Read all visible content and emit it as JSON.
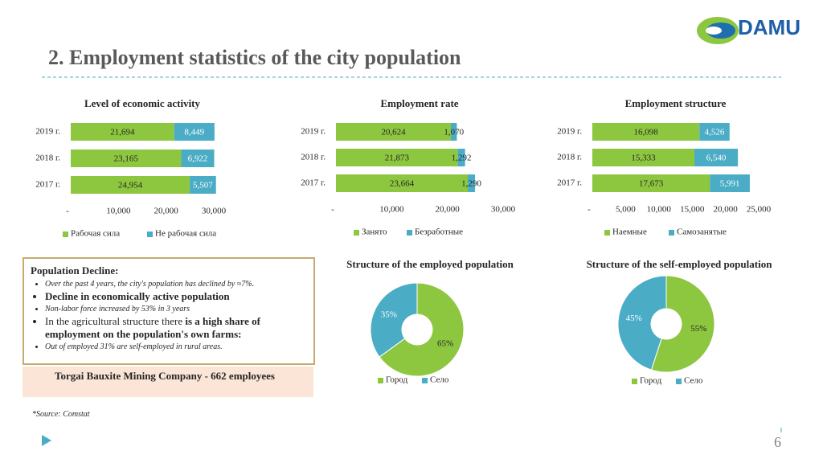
{
  "logo": "DAMU",
  "title": "2. Employment statistics of the city population",
  "chart_data": [
    {
      "type": "hbar",
      "title": "Level of economic activity",
      "categories": [
        "2019 г.",
        "2018 г.",
        "2017 г."
      ],
      "series": [
        {
          "name": "Рабочая сила",
          "color": "#8dc63f",
          "values": [
            21694,
            23165,
            24954
          ],
          "value_labels": [
            "21,694",
            "23,165",
            "24,954"
          ]
        },
        {
          "name": "Не рабочая сила",
          "color": "#4bacc6",
          "values": [
            8449,
            6922,
            5507
          ],
          "value_labels": [
            "8,449",
            "6,922",
            "5,507"
          ]
        }
      ],
      "xlim": [
        0,
        30000
      ],
      "xticks": [
        {
          "value": 0,
          "label": "-"
        },
        {
          "value": 10000,
          "label": "10,000"
        },
        {
          "value": 20000,
          "label": "20,000"
        },
        {
          "value": 30000,
          "label": "30,000"
        }
      ]
    },
    {
      "type": "hbar",
      "title": "Employment rate",
      "categories": [
        "2019 г.",
        "2018 г.",
        "2017 г."
      ],
      "series": [
        {
          "name": "Занято",
          "color": "#8dc63f",
          "values": [
            20624,
            21873,
            23664
          ],
          "value_labels": [
            "20,624",
            "21,873",
            "23,664"
          ]
        },
        {
          "name": "Безработные",
          "color": "#4bacc6",
          "values": [
            1070,
            1292,
            1290
          ],
          "value_labels": [
            "1,070",
            "1,292",
            "1,290"
          ]
        }
      ],
      "xlim": [
        0,
        30000
      ],
      "xticks": [
        {
          "value": 0,
          "label": "-"
        },
        {
          "value": 10000,
          "label": "10,000"
        },
        {
          "value": 20000,
          "label": "20,000"
        },
        {
          "value": 30000,
          "label": "30,000"
        }
      ]
    },
    {
      "type": "hbar",
      "title": "Employment structure",
      "categories": [
        "2019 г.",
        "2018 г.",
        "2017 г."
      ],
      "series": [
        {
          "name": "Наемные",
          "color": "#8dc63f",
          "values": [
            16098,
            15333,
            17673
          ],
          "value_labels": [
            "16,098",
            "15,333",
            "17,673"
          ]
        },
        {
          "name": "Самозанятые",
          "color": "#4bacc6",
          "values": [
            4526,
            6540,
            5991
          ],
          "value_labels": [
            "4,526",
            "6,540",
            "5,991"
          ]
        }
      ],
      "xlim": [
        0,
        25000
      ],
      "xticks": [
        {
          "value": 0,
          "label": "-"
        },
        {
          "value": 5000,
          "label": "5,000"
        },
        {
          "value": 10000,
          "label": "10,000"
        },
        {
          "value": 15000,
          "label": "15,000"
        },
        {
          "value": 20000,
          "label": "20,000"
        },
        {
          "value": 25000,
          "label": "25,000"
        }
      ]
    },
    {
      "type": "donut",
      "title": "Structure of the employed population",
      "categories": [
        "Город",
        "Село"
      ],
      "values": [
        65,
        35
      ],
      "value_labels": [
        "65%",
        "35%"
      ],
      "colors": [
        "#8dc63f",
        "#4bacc6"
      ]
    },
    {
      "type": "donut",
      "title": "Structure of the self-employed population",
      "categories": [
        "Город",
        "Село"
      ],
      "values": [
        55,
        45
      ],
      "value_labels": [
        "55%",
        "45%"
      ],
      "colors": [
        "#8dc63f",
        "#4bacc6"
      ]
    }
  ],
  "text_box": {
    "title": "Population Decline:",
    "items": [
      {
        "text": "Over the past 4 years, the city's population has declined by ≈7%.",
        "small": true
      },
      {
        "strong": "Decline in economically active population",
        "small": false
      },
      {
        "text": "Non-labor force increased by 53% in 3 years",
        "small": true
      },
      {
        "text": "In the agricultural structure there ",
        "strong": "is a high share of employment on the population's own farms:",
        "small": false
      },
      {
        "text": "Out of employed 31% are self-employed in rural areas.",
        "small": true
      }
    ]
  },
  "alert": "Torgai Bauxite Mining Company - 662 employees",
  "source": "*Source: Comstat",
  "page_number": "6"
}
